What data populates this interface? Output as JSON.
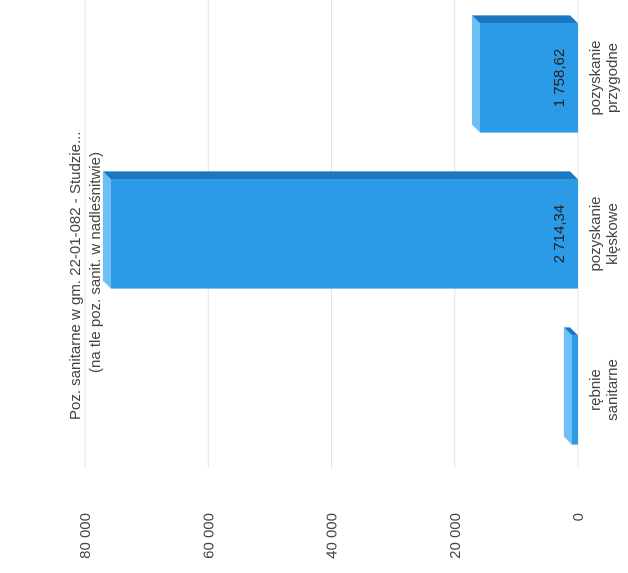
{
  "chart_data": {
    "type": "bar",
    "title": "Poz. sanitarne w gm.  22-01-082 - Studzie...",
    "subtitle": "(na tle poz. sanit. w nadleśnitwie)",
    "categories": [
      [
        "rębnie",
        "sanitarne"
      ],
      [
        "pozyskanie",
        "klęskowe"
      ],
      [
        "pozyskanie",
        "przygodne"
      ]
    ],
    "values": [
      1000,
      75800,
      15900
    ],
    "annotations": [
      "2 714,34",
      "1 758,62"
    ],
    "color": "#2b9be8",
    "ylim": [
      0,
      80000
    ],
    "yticks": [
      0,
      {
        "value": 20000,
        "label": "20 000"
      },
      {
        "value": 40000,
        "label": "40 000"
      },
      {
        "value": 60000,
        "label": "60 000"
      },
      {
        "value": 80000,
        "label": "80 000"
      }
    ],
    "grid": true
  }
}
